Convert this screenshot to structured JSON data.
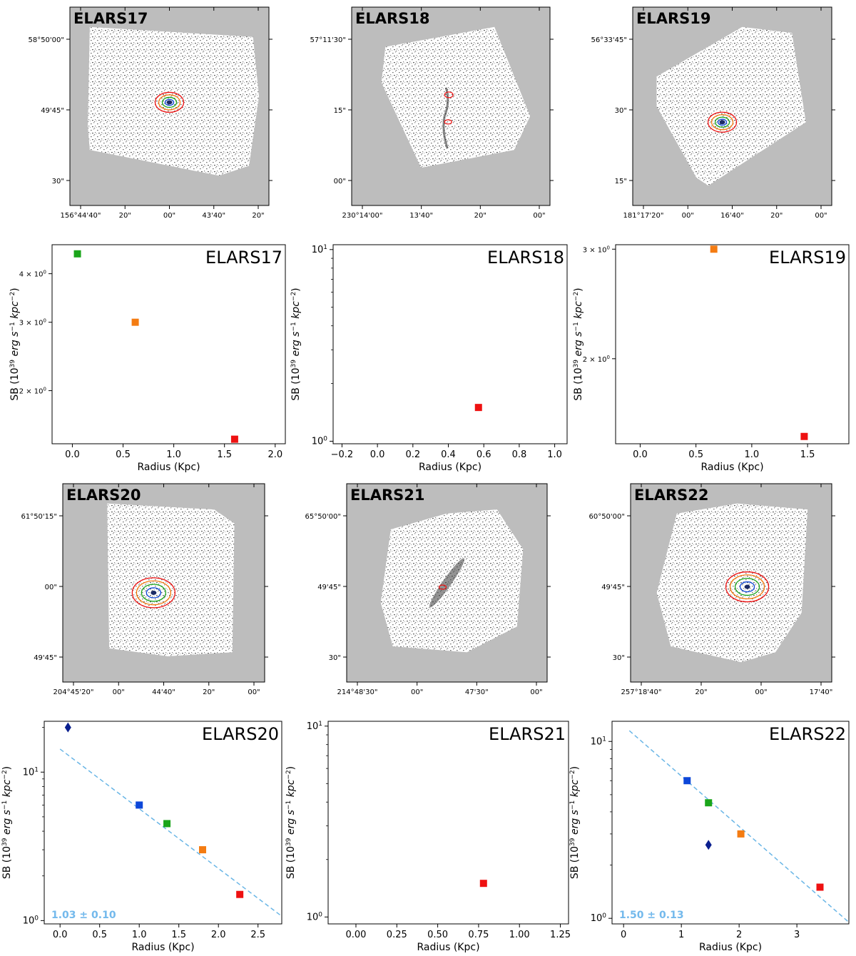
{
  "colors": {
    "background": "#ffffff",
    "map_bg": "#bdbdbd",
    "fit_line": "#6ab6e6",
    "fit_text": "#73b9ec",
    "marker_blue": "#0d47d9",
    "marker_green": "#1aa51a",
    "marker_orange": "#f47c12",
    "marker_red": "#ee1111",
    "marker_navy": "#0a1f8f"
  },
  "chart_data": [
    {
      "type": "image",
      "title": "ELARS17",
      "ra_ticks": [
        "156°44'40\"",
        "20\"",
        "00\"",
        "43'40\"",
        "20\""
      ],
      "dec_ticks": [
        "58°50'00\"",
        "49'45\"",
        "30\""
      ]
    },
    {
      "type": "image",
      "title": "ELARS18",
      "ra_ticks": [
        "230°14'00\"",
        "13'40\"",
        "20\"",
        "00\""
      ],
      "dec_ticks": [
        "57°11'30\"",
        "15\"",
        "00\""
      ]
    },
    {
      "type": "image",
      "title": "ELARS19",
      "ra_ticks": [
        "181°17'20\"",
        "00\"",
        "16'40\"",
        "20\"",
        "00\""
      ],
      "dec_ticks": [
        "56°33'45\"",
        "30\"",
        "15\""
      ]
    },
    {
      "type": "scatter",
      "title": "ELARS17",
      "xlabel": "Radius (Kpc)",
      "ylabel": "SB (10^39 erg s^-1 kpc^-2)",
      "yscale": "log",
      "xlim": [
        -0.2,
        2.1
      ],
      "ylim": [
        1.46,
        4.75
      ],
      "xticks": [
        0.0,
        0.5,
        1.0,
        1.5,
        2.0
      ],
      "xtick_labels": [
        "0.0",
        "0.5",
        "1.0",
        "1.5",
        "2.0"
      ],
      "yticks": [
        2,
        3,
        4
      ],
      "ytick_labels": [
        "2 × 10^0",
        "3 × 10^0",
        "4 × 10^0"
      ],
      "points": [
        {
          "x": 0.05,
          "y": 4.5,
          "marker": "square",
          "color": "green"
        },
        {
          "x": 0.62,
          "y": 3.0,
          "marker": "square",
          "color": "orange"
        },
        {
          "x": 1.6,
          "y": 1.5,
          "marker": "square",
          "color": "red"
        }
      ]
    },
    {
      "type": "scatter",
      "title": "ELARS18",
      "xlabel": "Radius (Kpc)",
      "ylabel": "SB (10^39 erg s^-1 kpc^-2)",
      "yscale": "log",
      "xlim": [
        -0.25,
        1.07
      ],
      "ylim": [
        0.97,
        10.6
      ],
      "xticks": [
        -0.2,
        0.0,
        0.2,
        0.4,
        0.6,
        0.8,
        1.0
      ],
      "xtick_labels": [
        "−0.2",
        "0.0",
        "0.2",
        "0.4",
        "0.6",
        "0.8",
        "1.0"
      ],
      "yticks": [
        1,
        10
      ],
      "ytick_labels": [
        "10^0",
        "10^1"
      ],
      "points": [
        {
          "x": 0.57,
          "y": 1.5,
          "marker": "square",
          "color": "red"
        }
      ]
    },
    {
      "type": "scatter",
      "title": "ELARS19",
      "xlabel": "Radius (Kpc)",
      "ylabel": "SB (10^39 erg s^-1 kpc^-2)",
      "yscale": "log",
      "xlim": [
        -0.22,
        1.87
      ],
      "ylim": [
        1.46,
        3.05
      ],
      "xticks": [
        0.0,
        0.5,
        1.0,
        1.5
      ],
      "xtick_labels": [
        "0.0",
        "0.5",
        "1.0",
        "1.5"
      ],
      "yticks": [
        2,
        3
      ],
      "ytick_labels": [
        "2 × 10^0",
        "3 × 10^0"
      ],
      "points": [
        {
          "x": 0.66,
          "y": 3.0,
          "marker": "square",
          "color": "orange"
        },
        {
          "x": 1.47,
          "y": 1.5,
          "marker": "square",
          "color": "red"
        }
      ]
    },
    {
      "type": "image",
      "title": "ELARS20",
      "ra_ticks": [
        "204°45'20\"",
        "00\"",
        "44'40\"",
        "20\"",
        "00\""
      ],
      "dec_ticks": [
        "61°50'15\"",
        "00\"",
        "49'45\""
      ]
    },
    {
      "type": "image",
      "title": "ELARS21",
      "ra_ticks": [
        "214°48'30\"",
        "00\"",
        "47'30\"",
        "00\""
      ],
      "dec_ticks": [
        "65°50'00\"",
        "49'45\"",
        "30\""
      ]
    },
    {
      "type": "image",
      "title": "ELARS22",
      "ra_ticks": [
        "257°18'40\"",
        "20\"",
        "00\"",
        "17'40\""
      ],
      "dec_ticks": [
        "60°50'00\"",
        "49'45\"",
        "30\""
      ]
    },
    {
      "type": "scatter",
      "title": "ELARS20",
      "xlabel": "Radius (Kpc)",
      "ylabel": "SB (10^39 erg s^-1 kpc^-2)",
      "yscale": "log",
      "xlim": [
        -0.2,
        2.8
      ],
      "ylim": [
        0.95,
        22
      ],
      "xticks": [
        0.0,
        0.5,
        1.0,
        1.5,
        2.0,
        2.5
      ],
      "xtick_labels": [
        "0.0",
        "0.5",
        "1.0",
        "1.5",
        "2.0",
        "2.5"
      ],
      "yticks": [
        1,
        10
      ],
      "ytick_labels": [
        "10^0",
        "10^1"
      ],
      "points": [
        {
          "x": 0.1,
          "y": 20,
          "marker": "diamond",
          "color": "navy"
        },
        {
          "x": 1.0,
          "y": 6.0,
          "marker": "square",
          "color": "blue"
        },
        {
          "x": 1.35,
          "y": 4.5,
          "marker": "square",
          "color": "green"
        },
        {
          "x": 1.8,
          "y": 3.0,
          "marker": "square",
          "color": "orange"
        },
        {
          "x": 2.27,
          "y": 1.5,
          "marker": "square",
          "color": "red"
        }
      ],
      "fit": {
        "x": [
          0.0,
          2.8
        ],
        "y": [
          14.3,
          1.07
        ],
        "label": "1.03 ± 0.10"
      }
    },
    {
      "type": "scatter",
      "title": "ELARS21",
      "xlabel": "Radius (Kpc)",
      "ylabel": "SB (10^39 erg s^-1 kpc^-2)",
      "yscale": "log",
      "xlim": [
        -0.17,
        1.3
      ],
      "ylim": [
        0.92,
        10.6
      ],
      "xticks": [
        0.0,
        0.25,
        0.5,
        0.75,
        1.0,
        1.25
      ],
      "xtick_labels": [
        "0.00",
        "0.25",
        "0.50",
        "0.75",
        "1.00",
        "1.25"
      ],
      "yticks": [
        1,
        10
      ],
      "ytick_labels": [
        "10^0",
        "10^1"
      ],
      "points": [
        {
          "x": 0.78,
          "y": 1.5,
          "marker": "square",
          "color": "red"
        }
      ]
    },
    {
      "type": "scatter",
      "title": "ELARS22",
      "xlabel": "Radius (Kpc)",
      "ylabel": "SB (10^39 erg s^-1 kpc^-2)",
      "yscale": "log",
      "xlim": [
        -0.2,
        3.9
      ],
      "ylim": [
        0.93,
        13
      ],
      "xticks": [
        0,
        1,
        2,
        3
      ],
      "xtick_labels": [
        "0",
        "1",
        "2",
        "3"
      ],
      "yticks": [
        1,
        10
      ],
      "ytick_labels": [
        "10^0",
        "10^1"
      ],
      "points": [
        {
          "x": 1.1,
          "y": 6.0,
          "marker": "square",
          "color": "blue"
        },
        {
          "x": 1.47,
          "y": 4.5,
          "marker": "square",
          "color": "green"
        },
        {
          "x": 2.03,
          "y": 3.0,
          "marker": "square",
          "color": "orange"
        },
        {
          "x": 3.4,
          "y": 1.5,
          "marker": "square",
          "color": "red"
        },
        {
          "x": 1.47,
          "y": 2.6,
          "marker": "diamond",
          "color": "navy"
        }
      ],
      "fit": {
        "x": [
          0.1,
          3.9
        ],
        "y": [
          11.5,
          0.95
        ],
        "label": "1.50 ± 0.13"
      }
    }
  ]
}
